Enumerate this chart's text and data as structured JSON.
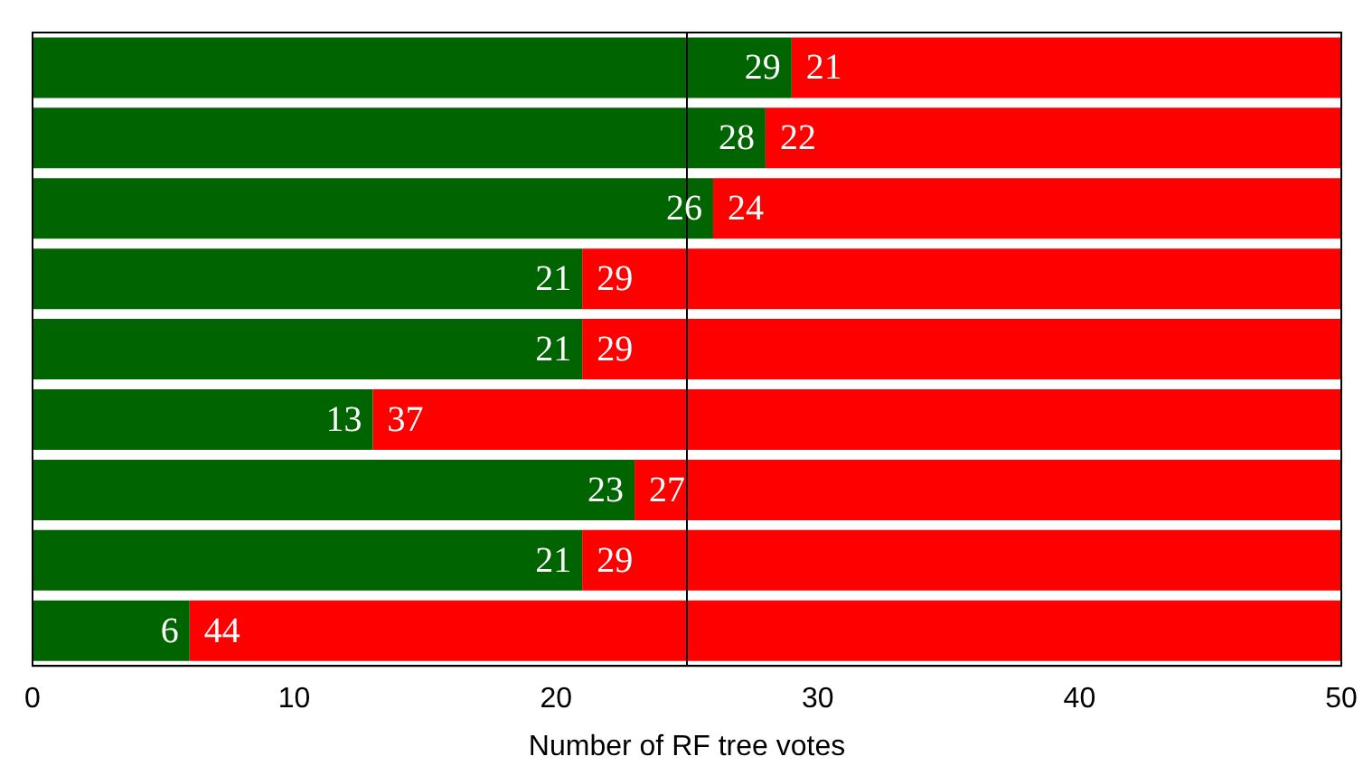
{
  "chart_data": {
    "type": "bar",
    "orientation": "horizontal",
    "stacked": true,
    "xlabel": "Number of RF tree votes",
    "categories": [
      null,
      null,
      null,
      null,
      null,
      null,
      null,
      null,
      null
    ],
    "series": [
      {
        "color": "#006400",
        "values": [
          29,
          28,
          26,
          21,
          21,
          13,
          23,
          21,
          6
        ]
      },
      {
        "color": "#ff0000",
        "values": [
          21,
          22,
          24,
          29,
          29,
          37,
          27,
          29,
          44
        ]
      }
    ],
    "xlim": [
      0,
      50
    ],
    "xticks": [
      0,
      10,
      20,
      30,
      40,
      50
    ],
    "ref_lines": [
      {
        "axis": "x",
        "value": 25,
        "color": "#000000"
      }
    ],
    "data_labels": true,
    "grid": false,
    "legend": false,
    "tick_labels": "x"
  }
}
